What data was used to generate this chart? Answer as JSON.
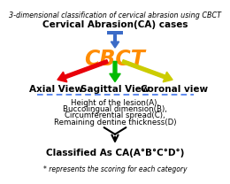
{
  "title": "3-dimensional classification of cervical abrasion using CBCT",
  "ca_label": "Cervical Abrasion(CA) cases",
  "cbct_label": "CBCT",
  "cbct_color": "#FF8C00",
  "axial_label": "Axial View",
  "sagittal_label": "Sagittal View",
  "coronal_label": "Coronal view",
  "axial_color": "#E8000A",
  "sagittal_color": "#00BB00",
  "coronal_color": "#CCCC00",
  "down_arrow_color": "#3B6BC7",
  "bullet_lines": [
    "Height of the lesion(A),",
    "Buccolingual dimension(B),",
    "Circumferential spread(C),",
    "Remaining dentine thickness(D)"
  ],
  "classified_text": "Classified As CA(A°B°C°D°)",
  "footnote": "* represents the scoring for each category",
  "bg_color": "#FFFFFF",
  "title_fontsize": 5.8,
  "ca_fontsize": 7.5,
  "cbct_fontsize": 17,
  "view_fontsize": 7.5,
  "body_fontsize": 6.2,
  "classified_fontsize": 7.5,
  "footnote_fontsize": 5.5,
  "dashed_line_color": "#4477EE"
}
